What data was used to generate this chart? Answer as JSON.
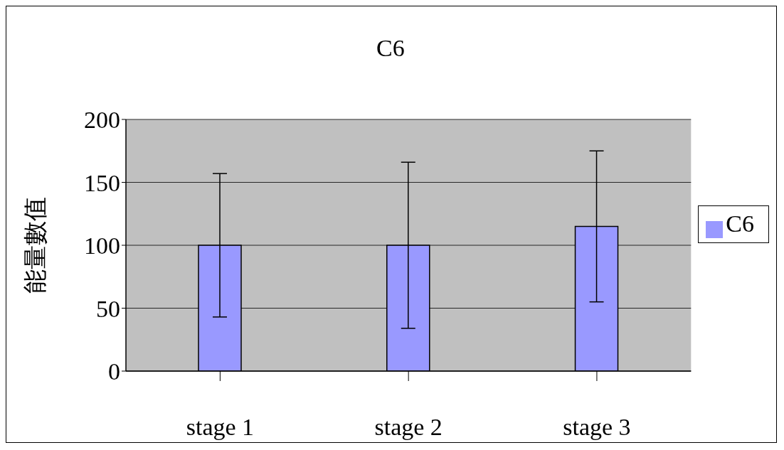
{
  "chart_data": {
    "type": "bar",
    "title": "C6",
    "ylabel": "能量數值",
    "categories": [
      "stage 1",
      "stage 2",
      "stage 3"
    ],
    "series": [
      {
        "name": "C6",
        "color": "#9999ff",
        "values": [
          100,
          100,
          115
        ],
        "errors": [
          57,
          66,
          60
        ]
      }
    ],
    "ylim": [
      0,
      200
    ],
    "yticks": [
      0,
      50,
      100,
      150,
      200
    ],
    "grid": "y",
    "legend": "right"
  }
}
